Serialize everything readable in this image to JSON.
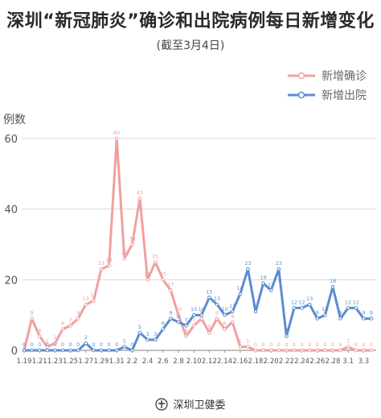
{
  "chart_data": {
    "type": "line",
    "title": "深圳“新冠肺炎”确诊和出院病例每日新增变化",
    "subtitle": "(截至3月4日)",
    "ylabel": "例数",
    "xlabel": "",
    "ylim": [
      0,
      60
    ],
    "yticks": [
      "0",
      "20",
      "40",
      "60"
    ],
    "grid": true,
    "legend_position": "top-right",
    "x_tick_labels": [
      "1.19",
      "1.21",
      "1.23",
      "1.25",
      "1.27",
      "1.29",
      "1.31",
      "2.2",
      "2.4",
      "2.6",
      "2.8",
      "2.10",
      "2.12",
      "2.14",
      "2.16",
      "2.18",
      "2.20",
      "2.22",
      "2.24",
      "2.26",
      "2.28",
      "3.1",
      "3.3"
    ],
    "categories": [
      "1.19",
      "1.20",
      "1.21",
      "1.22",
      "1.23",
      "1.24",
      "1.25",
      "1.26",
      "1.27",
      "1.28",
      "1.29",
      "1.30",
      "1.31",
      "2.1",
      "2.2",
      "2.3",
      "2.4",
      "2.5",
      "2.6",
      "2.7",
      "2.8",
      "2.9",
      "2.10",
      "2.11",
      "2.12",
      "2.13",
      "2.14",
      "2.15",
      "2.16",
      "2.17",
      "2.18",
      "2.19",
      "2.20",
      "2.21",
      "2.22",
      "2.23",
      "2.24",
      "2.25",
      "2.26",
      "2.27",
      "2.28",
      "2.29",
      "3.1",
      "3.2",
      "3.3",
      "3.4"
    ],
    "series": [
      {
        "name": "新增确诊",
        "color": "#f0a0a0",
        "values": [
          0,
          9,
          4,
          1,
          2,
          6,
          7,
          9,
          13,
          14,
          23,
          24,
          60,
          26,
          30,
          43,
          20,
          25,
          20,
          17,
          10,
          4,
          7,
          9,
          5,
          9,
          6,
          8,
          1,
          1,
          0,
          0,
          0,
          0,
          0,
          0,
          0,
          0,
          0,
          0,
          0,
          0,
          1,
          0,
          0,
          0
        ]
      },
      {
        "name": "新增出院",
        "color": "#5b8cd1",
        "values": [
          0,
          0,
          0,
          0,
          0,
          0,
          0,
          0,
          2,
          0,
          0,
          0,
          0,
          1,
          0,
          5,
          3,
          3,
          6,
          9,
          8,
          7,
          10,
          10,
          15,
          13,
          10,
          11,
          16,
          23,
          11,
          19,
          17,
          23,
          4,
          12,
          12,
          13,
          9,
          10,
          18,
          9,
          12,
          12,
          9,
          9
        ]
      }
    ],
    "point_labels": {
      "confirmed": [
        "0",
        "9",
        "4",
        "1",
        "2",
        "6",
        "7",
        "9",
        "13",
        "14",
        "23",
        "24",
        "60",
        "26",
        "30",
        "43",
        "20",
        "25",
        "20",
        "17",
        "10",
        "4",
        "7",
        "9",
        "5",
        "9",
        "6",
        "8",
        "1",
        "1",
        "0",
        "0",
        "0",
        "0",
        "0",
        "0",
        "0",
        "0",
        "0",
        "0",
        "0",
        "0",
        "1",
        "0",
        "0",
        "0"
      ],
      "discharged": [
        "0",
        "0",
        "0",
        "0",
        "0",
        "0",
        "0",
        "0",
        "2",
        "0",
        "0",
        "0",
        "0",
        "1",
        "0",
        "5",
        "3",
        "3",
        "6",
        "9",
        "8",
        "7",
        "10",
        "10",
        "15",
        "13",
        "10",
        "11",
        "16",
        "23",
        "11",
        "19",
        "17",
        "23",
        "4",
        "12",
        "12",
        "13",
        "9",
        "10",
        "18",
        "9",
        "12",
        "12",
        "9",
        "9"
      ]
    }
  },
  "footer": {
    "text": "深圳卫健委",
    "logo_icon": "health-commission-emblem-icon"
  }
}
